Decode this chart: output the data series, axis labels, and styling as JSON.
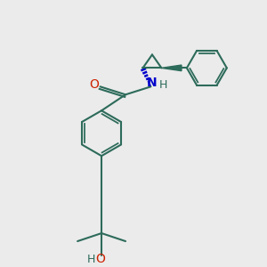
{
  "bg_color": "#ebebeb",
  "bond_color": "#2d6b5a",
  "nitrogen_color": "#0000cc",
  "oxygen_color": "#cc2200",
  "line_width": 1.5,
  "fig_size": [
    3.0,
    3.0
  ],
  "dpi": 100,
  "xlim": [
    0,
    10
  ],
  "ylim": [
    0,
    10
  ]
}
